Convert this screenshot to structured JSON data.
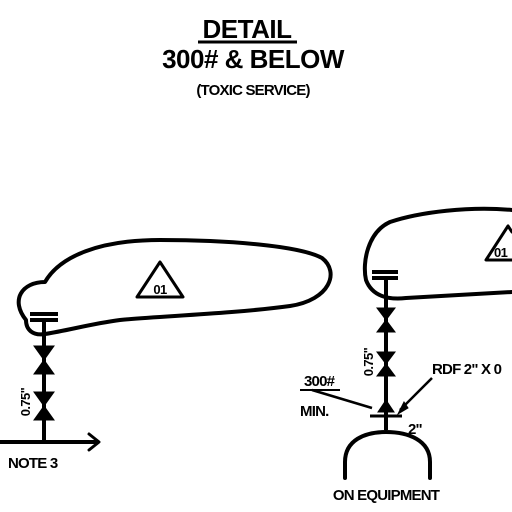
{
  "header": {
    "title": "DETAIL",
    "subtitle": "300# & BELOW",
    "note": "(TOXIC SERVICE)"
  },
  "left_detail": {
    "cloud_tag": "01",
    "dimension": "0.75\"",
    "note_label": "NOTE 3"
  },
  "right_detail": {
    "cloud_tag": "01",
    "dimension": "0.75\"",
    "rating_label": "300#",
    "min_label": "MIN.",
    "rdf_label": "RDF 2\" X 0",
    "pipe_size": "2\"",
    "equipment_label": "ON EQUIPMENT"
  }
}
